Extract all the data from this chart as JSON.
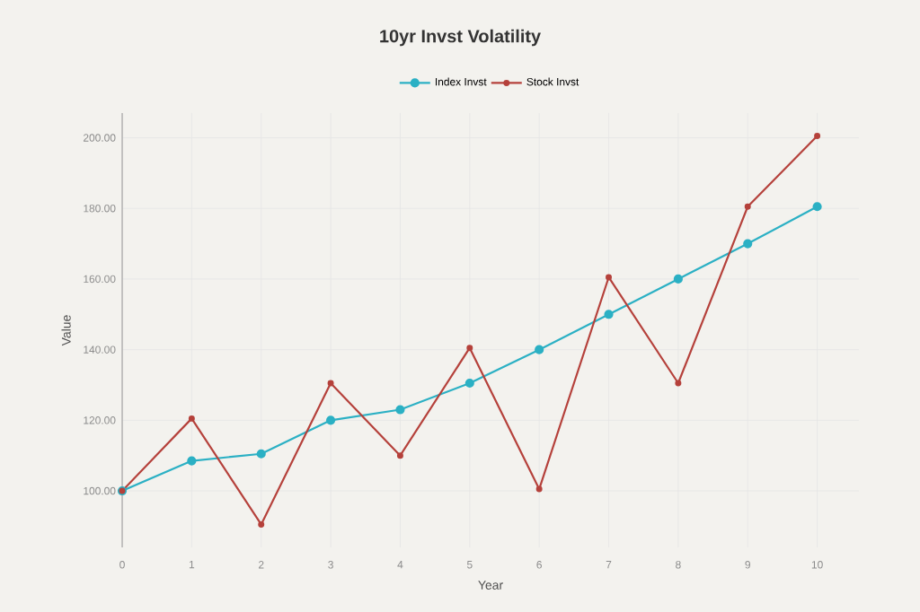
{
  "chart_data": {
    "type": "line",
    "title": "10yr Invst Volatility",
    "xlabel": "Year",
    "ylabel": "Value",
    "x": [
      0,
      1,
      2,
      3,
      4,
      5,
      6,
      7,
      8,
      9,
      10
    ],
    "series": [
      {
        "name": "Index Invst",
        "color": "#2bb0c4",
        "values": [
          100,
          108.5,
          110.5,
          120,
          123,
          130.5,
          140,
          150,
          160,
          170,
          180.5
        ]
      },
      {
        "name": "Stock Invst",
        "color": "#b5413b",
        "values": [
          100,
          120.5,
          90.5,
          130.5,
          110,
          140.5,
          100.5,
          160.5,
          130.5,
          180.5,
          200.5
        ]
      }
    ],
    "xlim": [
      0,
      10.6
    ],
    "ylim": [
      84,
      207
    ],
    "xticks": [
      0,
      1,
      2,
      3,
      4,
      5,
      6,
      7,
      8,
      9,
      10
    ],
    "yticks": [
      {
        "value": 100,
        "label": "100.00"
      },
      {
        "value": 120,
        "label": "120.00"
      },
      {
        "value": 140,
        "label": "140.00"
      },
      {
        "value": 160,
        "label": "160.00"
      },
      {
        "value": 180,
        "label": "180.00"
      },
      {
        "value": 200,
        "label": "200.00"
      }
    ],
    "grid": true,
    "legend": "top",
    "marker": "circle",
    "line_style": "solid"
  }
}
